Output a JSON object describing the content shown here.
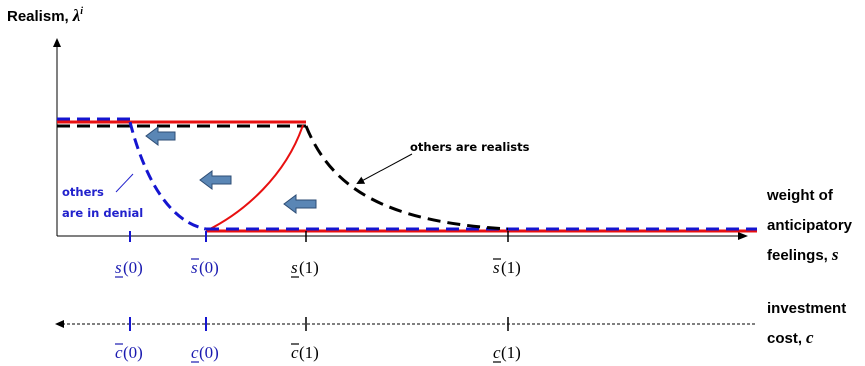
{
  "figure": {
    "y_axis": {
      "label": "Realism,",
      "symbol": "λ",
      "superscript": "i"
    },
    "x_axis_s": {
      "label_lines": [
        "weight of",
        "anticipatory",
        "feelings,"
      ],
      "symbol": "s"
    },
    "x_axis_c": {
      "label_lines": [
        "investment",
        "cost,"
      ],
      "symbol": "c"
    },
    "annotations": {
      "realists": "others are realists",
      "denial_line1": "others",
      "denial_line2": "are in denial"
    },
    "s_ticks": [
      {
        "base": "s",
        "bar": "under",
        "arg": "(0)",
        "color": "#1a1ab0"
      },
      {
        "base": "s",
        "bar": "over",
        "arg": "(0)",
        "color": "#1a1ab0"
      },
      {
        "base": "s",
        "bar": "under",
        "arg": "(1)",
        "color": "#000000"
      },
      {
        "base": "s",
        "bar": "over",
        "arg": "(1)",
        "color": "#000000"
      }
    ],
    "c_ticks": [
      {
        "base": "c",
        "bar": "over",
        "arg": "(0)",
        "color": "#1a1ab0"
      },
      {
        "base": "c",
        "bar": "under",
        "arg": "(0)",
        "color": "#1a1ab0"
      },
      {
        "base": "c",
        "bar": "over",
        "arg": "(1)",
        "color": "#000000"
      },
      {
        "base": "c",
        "bar": "under",
        "arg": "(1)",
        "color": "#000000"
      }
    ],
    "colors": {
      "red_curve": "#e81010",
      "blue_dashed": "#1515d0",
      "black_dashed": "#000000",
      "arrow_fill": "#5a86b5",
      "arrow_stroke": "#2e4d75",
      "annotation_blue": "#2222cc"
    }
  }
}
